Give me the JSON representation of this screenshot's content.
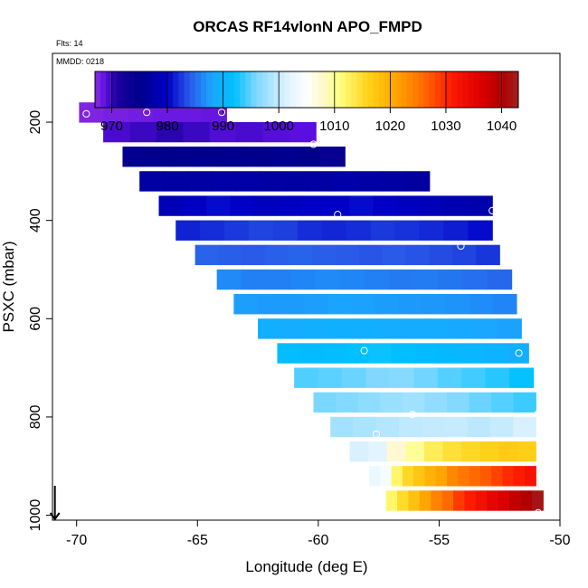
{
  "chart_data": {
    "type": "heatmap",
    "title": "ORCAS RF14vlonN APO_FMPD",
    "subtitle_flights": "Flts: 14",
    "subtitle_date": "MMDD: 0218",
    "xlabel": "Longitude (deg E)",
    "ylabel": "PSXC (mbar)",
    "xlim": [
      -71,
      -50
    ],
    "ylim": [
      1010,
      60
    ],
    "x_ticks": [
      -70,
      -65,
      -60,
      -55,
      -50
    ],
    "x_tick_labels": [
      "-70",
      "-65",
      "-60",
      "-55",
      "-50"
    ],
    "y_ticks": [
      200,
      400,
      600,
      800,
      1000
    ],
    "y_tick_labels": [
      "200",
      "400",
      "600",
      "800",
      "1000"
    ],
    "colorbar": {
      "min": 967,
      "max": 1043,
      "ticks": [
        970,
        980,
        990,
        1000,
        1010,
        1020,
        1030,
        1040
      ],
      "tick_labels": [
        "970",
        "980",
        "990",
        "1000",
        "1010",
        "1020",
        "1030",
        "1040"
      ],
      "colors": [
        {
          "v": 967,
          "c": "#8a2be2"
        },
        {
          "v": 969,
          "c": "#5a0fe0"
        },
        {
          "v": 971,
          "c": "#1a00a0"
        },
        {
          "v": 975,
          "c": "#00008b"
        },
        {
          "v": 980,
          "c": "#0000c8"
        },
        {
          "v": 984,
          "c": "#2a5ae8"
        },
        {
          "v": 988,
          "c": "#1aa6ff"
        },
        {
          "v": 992,
          "c": "#00c0ff"
        },
        {
          "v": 996,
          "c": "#80d8ff"
        },
        {
          "v": 1001,
          "c": "#d8f0ff"
        },
        {
          "v": 1005,
          "c": "#ffffff"
        },
        {
          "v": 1008,
          "c": "#fff8c8"
        },
        {
          "v": 1011,
          "c": "#ffff80"
        },
        {
          "v": 1016,
          "c": "#ffd21a"
        },
        {
          "v": 1021,
          "c": "#ffa500"
        },
        {
          "v": 1026,
          "c": "#ff6a00"
        },
        {
          "v": 1031,
          "c": "#ff1a00"
        },
        {
          "v": 1036,
          "c": "#e00000"
        },
        {
          "v": 1040,
          "c": "#b00000"
        },
        {
          "v": 1043,
          "c": "#a02020"
        }
      ]
    },
    "rows": [
      {
        "p": 180,
        "lon_start": -69.9,
        "lon_end": -63.8,
        "values": [
          967.5,
          967.8,
          968.0,
          968.3,
          968.3,
          968.5
        ]
      },
      {
        "p": 220,
        "lon_start": -68.9,
        "lon_end": -60.1,
        "values": [
          969.5,
          970.0,
          970.5,
          970.0,
          969.3,
          969.5,
          969.2,
          969.0
        ]
      },
      {
        "p": 270,
        "lon_start": -68.1,
        "lon_end": -58.9,
        "values": [
          974.5,
          975.0,
          975.2,
          975.0,
          974.8,
          975.0,
          975.3,
          975.0,
          974.0
        ]
      },
      {
        "p": 320,
        "lon_start": -67.4,
        "lon_end": -55.4,
        "values": [
          977.0,
          976.8,
          977.0,
          977.3,
          977.2,
          977.0,
          976.8,
          977.0,
          977.5,
          977.2,
          977.0,
          976.6
        ]
      },
      {
        "p": 370,
        "lon_start": -66.6,
        "lon_end": -52.8,
        "values": [
          978.5,
          979.5,
          980.5,
          980.0,
          979.2,
          979.5,
          980.0,
          979.8,
          980.5,
          979.8,
          979.2,
          978.8,
          978.3,
          977.8
        ]
      },
      {
        "p": 420,
        "lon_start": -65.9,
        "lon_end": -52.8,
        "values": [
          981.5,
          982.0,
          982.5,
          983.0,
          982.8,
          982.0,
          981.7,
          982.0,
          982.5,
          982.2,
          981.8,
          981.3,
          980.5
        ]
      },
      {
        "p": 470,
        "lon_start": -65.1,
        "lon_end": -52.5,
        "values": [
          984.5,
          984.2,
          984.0,
          984.3,
          984.5,
          984.2,
          984.0,
          983.8,
          984.0,
          983.7,
          983.4,
          983.0,
          982.4
        ]
      },
      {
        "p": 520,
        "lon_start": -64.2,
        "lon_end": -52.0,
        "values": [
          986.5,
          986.0,
          986.0,
          986.3,
          986.6,
          986.3,
          986.0,
          985.7,
          985.8,
          985.4,
          985.1,
          984.7
        ]
      },
      {
        "p": 570,
        "lon_start": -63.5,
        "lon_end": -51.8,
        "values": [
          987.6,
          987.4,
          987.4,
          987.6,
          987.9,
          987.8,
          987.5,
          987.3,
          987.2,
          987.0,
          986.7,
          986.3
        ]
      },
      {
        "p": 620,
        "lon_start": -62.5,
        "lon_end": -51.6,
        "values": [
          989.3,
          989.0,
          989.2,
          989.5,
          989.4,
          989.0,
          988.8,
          988.7,
          988.5,
          988.2,
          987.8
        ]
      },
      {
        "p": 670,
        "lon_start": -61.7,
        "lon_end": -51.3,
        "values": [
          991.5,
          991.2,
          991.6,
          992.0,
          992.3,
          991.8,
          991.3,
          990.8,
          990.5,
          990.0,
          989.2
        ]
      },
      {
        "p": 720,
        "lon_start": -61.0,
        "lon_end": -51.1,
        "values": [
          994.5,
          994.8,
          995.3,
          996.0,
          996.4,
          995.5,
          994.6,
          994.0,
          993.2,
          992.2
        ]
      },
      {
        "p": 770,
        "lon_start": -60.2,
        "lon_end": -51.0,
        "values": [
          995.8,
          996.2,
          996.8,
          997.4,
          997.8,
          997.0,
          996.2,
          995.3,
          994.6,
          993.8
        ]
      },
      {
        "p": 820,
        "lon_start": -59.5,
        "lon_end": -51.0,
        "values": [
          998.0,
          998.4,
          999.0,
          999.5,
          999.8,
          1000.0,
          999.4,
          1000.0,
          1001.0
        ]
      },
      {
        "p": 870,
        "lon_start": -58.7,
        "lon_end": -51.0,
        "values": [
          1001.0,
          1002.0,
          1007.5,
          1010.0,
          1013.0,
          1014.5,
          1015.5,
          1016.0,
          1016.8,
          1016.5
        ]
      },
      {
        "p": 920,
        "lon_start": -57.9,
        "lon_end": -51.0,
        "values": [
          1003.0,
          1004.0,
          1012.0,
          1015.5,
          1017.5,
          1019.5,
          1021.0,
          1023.5,
          1024.8,
          1026.0,
          1027.0,
          1028.5,
          1030.0,
          1031.0,
          1032.5
        ]
      },
      {
        "p": 970,
        "lon_start": -57.2,
        "lon_end": -50.7,
        "values": [
          1012.0,
          1015.0,
          1018.0,
          1021.0,
          1024.0,
          1026.0,
          1029.0,
          1031.0,
          1033.0,
          1035.0,
          1036.5,
          1038.5,
          1040.0,
          1042.0
        ]
      }
    ],
    "markers": [
      {
        "lon": -69.6,
        "p": 183
      },
      {
        "lon": -67.1,
        "p": 180
      },
      {
        "lon": -64.0,
        "p": 180
      },
      {
        "lon": -60.2,
        "p": 245
      },
      {
        "lon": -59.2,
        "p": 388
      },
      {
        "lon": -52.8,
        "p": 380
      },
      {
        "lon": -54.1,
        "p": 452
      },
      {
        "lon": -58.1,
        "p": 665
      },
      {
        "lon": -51.7,
        "p": 670
      },
      {
        "lon": -56.1,
        "p": 795
      },
      {
        "lon": -50.9,
        "p": 793
      },
      {
        "lon": -57.6,
        "p": 835
      },
      {
        "lon": -50.9,
        "p": 995
      }
    ],
    "arrow": {
      "lon": -70.9,
      "p_from": 940,
      "p_to": 1008
    }
  }
}
